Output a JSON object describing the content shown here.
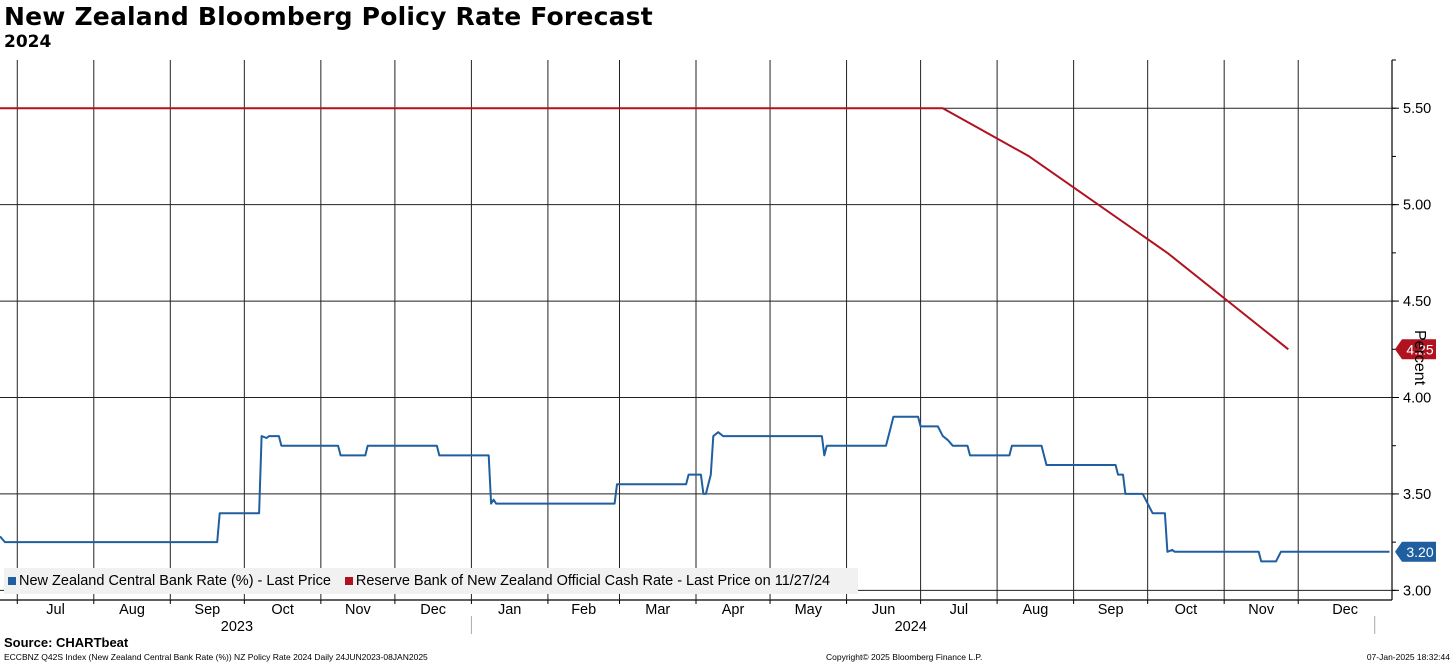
{
  "chart_data": {
    "type": "line",
    "title": "New Zealand Bloomberg Policy Rate Forecast",
    "subtitle": "2024",
    "ylabel": "Percent",
    "ylim": [
      2.95,
      5.75
    ],
    "yticks": [
      3.0,
      3.5,
      4.0,
      4.5,
      5.0,
      5.5
    ],
    "ytick_labels": [
      "3.00",
      "3.50",
      "4.00",
      "4.50",
      "5.00",
      "5.50"
    ],
    "x_start": "2023-06-24",
    "x_end": "2025-01-08",
    "month_ticks": [
      {
        "label": "Jul",
        "date": "2023-07-01"
      },
      {
        "label": "Aug",
        "date": "2023-08-01"
      },
      {
        "label": "Sep",
        "date": "2023-09-01"
      },
      {
        "label": "Oct",
        "date": "2023-10-01"
      },
      {
        "label": "Nov",
        "date": "2023-11-01"
      },
      {
        "label": "Dec",
        "date": "2023-12-01"
      },
      {
        "label": "Jan",
        "date": "2024-01-01"
      },
      {
        "label": "Feb",
        "date": "2024-02-01"
      },
      {
        "label": "Mar",
        "date": "2024-03-01"
      },
      {
        "label": "Apr",
        "date": "2024-04-01"
      },
      {
        "label": "May",
        "date": "2024-05-01"
      },
      {
        "label": "Jun",
        "date": "2024-06-01"
      },
      {
        "label": "Jul",
        "date": "2024-07-01"
      },
      {
        "label": "Aug",
        "date": "2024-08-01"
      },
      {
        "label": "Sep",
        "date": "2024-09-01"
      },
      {
        "label": "Oct",
        "date": "2024-10-01"
      },
      {
        "label": "Nov",
        "date": "2024-11-01"
      },
      {
        "label": "Dec",
        "date": "2024-12-01"
      }
    ],
    "year_labels": [
      {
        "label": "2023",
        "date": "2023-09-28"
      },
      {
        "label": "2024",
        "date": "2024-06-27"
      }
    ],
    "series": [
      {
        "name": "New Zealand Central Bank Rate (%) - Last Price",
        "color": "#1f5fa0",
        "last_value": "3.20",
        "points": [
          [
            "2023-06-24",
            3.28
          ],
          [
            "2023-06-26",
            3.25
          ],
          [
            "2023-09-20",
            3.25
          ],
          [
            "2023-09-21",
            3.4
          ],
          [
            "2023-10-07",
            3.4
          ],
          [
            "2023-10-08",
            3.8
          ],
          [
            "2023-10-10",
            3.79
          ],
          [
            "2023-10-11",
            3.8
          ],
          [
            "2023-10-15",
            3.8
          ],
          [
            "2023-10-16",
            3.75
          ],
          [
            "2023-11-08",
            3.75
          ],
          [
            "2023-11-09",
            3.7
          ],
          [
            "2023-11-19",
            3.7
          ],
          [
            "2023-11-20",
            3.75
          ],
          [
            "2023-12-18",
            3.75
          ],
          [
            "2023-12-19",
            3.7
          ],
          [
            "2024-01-08",
            3.7
          ],
          [
            "2024-01-09",
            3.45
          ],
          [
            "2024-01-10",
            3.47
          ],
          [
            "2024-01-11",
            3.45
          ],
          [
            "2024-02-28",
            3.45
          ],
          [
            "2024-02-29",
            3.55
          ],
          [
            "2024-03-28",
            3.55
          ],
          [
            "2024-03-29",
            3.6
          ],
          [
            "2024-04-03",
            3.6
          ],
          [
            "2024-04-04",
            3.5
          ],
          [
            "2024-04-05",
            3.5
          ],
          [
            "2024-04-07",
            3.6
          ],
          [
            "2024-04-08",
            3.8
          ],
          [
            "2024-04-10",
            3.82
          ],
          [
            "2024-04-12",
            3.8
          ],
          [
            "2024-05-22",
            3.8
          ],
          [
            "2024-05-23",
            3.7
          ],
          [
            "2024-05-24",
            3.75
          ],
          [
            "2024-06-17",
            3.75
          ],
          [
            "2024-06-19",
            3.85
          ],
          [
            "2024-06-20",
            3.9
          ],
          [
            "2024-06-30",
            3.9
          ],
          [
            "2024-07-01",
            3.85
          ],
          [
            "2024-07-08",
            3.85
          ],
          [
            "2024-07-10",
            3.8
          ],
          [
            "2024-07-12",
            3.78
          ],
          [
            "2024-07-14",
            3.75
          ],
          [
            "2024-07-20",
            3.75
          ],
          [
            "2024-07-21",
            3.7
          ],
          [
            "2024-08-06",
            3.7
          ],
          [
            "2024-08-07",
            3.75
          ],
          [
            "2024-08-19",
            3.75
          ],
          [
            "2024-08-21",
            3.65
          ],
          [
            "2024-09-18",
            3.65
          ],
          [
            "2024-09-19",
            3.6
          ],
          [
            "2024-09-21",
            3.6
          ],
          [
            "2024-09-22",
            3.5
          ],
          [
            "2024-09-29",
            3.5
          ],
          [
            "2024-10-03",
            3.4
          ],
          [
            "2024-10-08",
            3.4
          ],
          [
            "2024-10-09",
            3.2
          ],
          [
            "2024-10-11",
            3.21
          ],
          [
            "2024-10-12",
            3.2
          ],
          [
            "2024-11-15",
            3.2
          ],
          [
            "2024-11-16",
            3.15
          ],
          [
            "2024-11-22",
            3.15
          ],
          [
            "2024-11-24",
            3.2
          ],
          [
            "2025-01-07",
            3.2
          ]
        ]
      },
      {
        "name": "Reserve Bank of New Zealand Official Cash Rate - Last Price on 11/27/24",
        "color": "#b0121f",
        "last_value": "4.25",
        "points": [
          [
            "2023-06-24",
            5.5
          ],
          [
            "2024-07-10",
            5.5
          ],
          [
            "2024-08-14",
            5.25
          ],
          [
            "2024-10-09",
            4.75
          ],
          [
            "2024-11-27",
            4.25
          ]
        ]
      }
    ]
  },
  "legend": {
    "item1": "New Zealand Central Bank Rate (%) - Last Price",
    "item2": "Reserve Bank of New Zealand Official Cash Rate - Last Price on 11/27/24"
  },
  "source": "Source: CHARTbeat",
  "footer": {
    "left": "ECCBNZ Q42S Index (New Zealand Central Bank Rate (%)) NZ Policy Rate 2024  Daily 24JUN2023-08JAN2025",
    "center": "Copyright© 2025 Bloomberg Finance L.P.",
    "right": "07-Jan-2025 18:32:44"
  }
}
